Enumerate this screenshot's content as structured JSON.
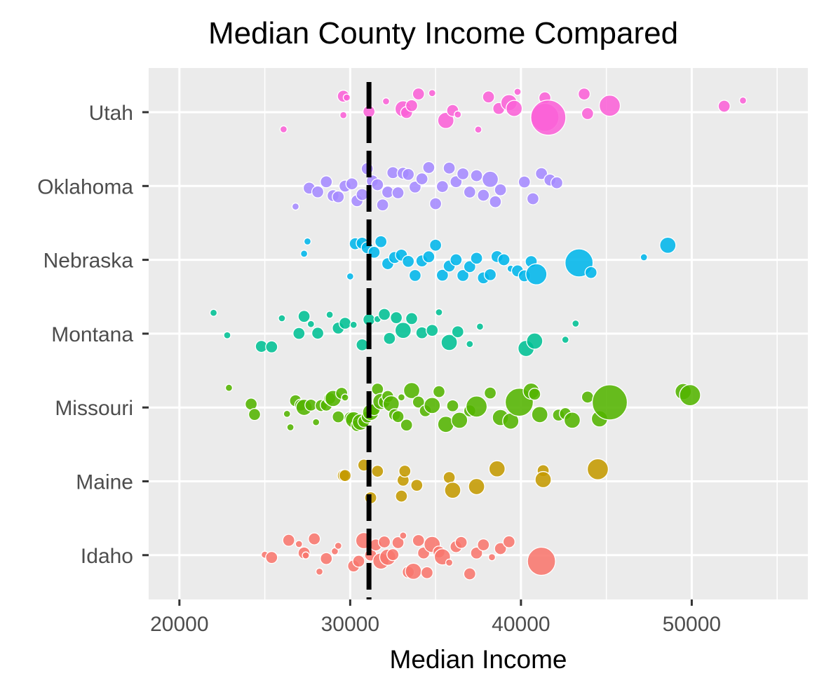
{
  "chart_data": {
    "type": "scatter",
    "title": "Median County Income Compared",
    "xlabel": "Median Income",
    "ylabel": "",
    "xlim": [
      18200,
      56800
    ],
    "x_ticks": [
      20000,
      30000,
      40000,
      50000
    ],
    "x_tick_labels": [
      "20000",
      "30000",
      "40000",
      "50000"
    ],
    "categories": [
      "Idaho",
      "Maine",
      "Missouri",
      "Montana",
      "Nebraska",
      "Oklahoma",
      "Utah"
    ],
    "reference_line": {
      "x": 31100,
      "style": "dashed",
      "color": "#000000"
    },
    "grid": true,
    "legend": "none",
    "panel_background": "#ebebeb",
    "series": [
      {
        "category": "Idaho",
        "color": "#f8766d",
        "points": [
          [
            25000,
            1
          ],
          [
            25400,
            2
          ],
          [
            26400,
            2
          ],
          [
            27000,
            1
          ],
          [
            27300,
            2
          ],
          [
            27400,
            1
          ],
          [
            27900,
            2
          ],
          [
            28200,
            1
          ],
          [
            28600,
            2
          ],
          [
            29100,
            1
          ],
          [
            29300,
            1
          ],
          [
            30200,
            2
          ],
          [
            30500,
            2
          ],
          [
            30800,
            3
          ],
          [
            31200,
            2
          ],
          [
            31500,
            2
          ],
          [
            31800,
            3
          ],
          [
            32000,
            2
          ],
          [
            32200,
            3
          ],
          [
            32500,
            2
          ],
          [
            32800,
            2
          ],
          [
            33100,
            1
          ],
          [
            33400,
            2
          ],
          [
            33700,
            3
          ],
          [
            34000,
            2
          ],
          [
            34300,
            2
          ],
          [
            34500,
            2
          ],
          [
            34800,
            3
          ],
          [
            35200,
            2
          ],
          [
            35400,
            3
          ],
          [
            35800,
            1
          ],
          [
            36200,
            2
          ],
          [
            36500,
            2
          ],
          [
            37000,
            2
          ],
          [
            37400,
            2
          ],
          [
            37800,
            2
          ],
          [
            38300,
            1
          ],
          [
            38800,
            2
          ],
          [
            39300,
            2
          ],
          [
            41200,
            5
          ]
        ]
      },
      {
        "category": "Maine",
        "color": "#c49a00",
        "points": [
          [
            29600,
            2
          ],
          [
            29700,
            2
          ],
          [
            30800,
            2
          ],
          [
            31200,
            2
          ],
          [
            31600,
            2
          ],
          [
            33000,
            2
          ],
          [
            33100,
            2
          ],
          [
            33200,
            2
          ],
          [
            33900,
            2
          ],
          [
            35800,
            2
          ],
          [
            36000,
            3
          ],
          [
            37400,
            3
          ],
          [
            38600,
            3
          ],
          [
            41300,
            2
          ],
          [
            41300,
            3
          ],
          [
            44500,
            4
          ]
        ]
      },
      {
        "category": "Missouri",
        "color": "#53b400",
        "points": [
          [
            22900,
            1
          ],
          [
            24200,
            2
          ],
          [
            24400,
            2
          ],
          [
            26300,
            1
          ],
          [
            26500,
            1
          ],
          [
            26800,
            2
          ],
          [
            27100,
            2
          ],
          [
            27300,
            3
          ],
          [
            27700,
            2
          ],
          [
            28000,
            1
          ],
          [
            28300,
            2
          ],
          [
            28600,
            2
          ],
          [
            28800,
            2
          ],
          [
            29000,
            3
          ],
          [
            29300,
            2
          ],
          [
            29500,
            2
          ],
          [
            29700,
            1
          ],
          [
            30000,
            2
          ],
          [
            30200,
            3
          ],
          [
            30400,
            2
          ],
          [
            30600,
            3
          ],
          [
            30800,
            2
          ],
          [
            31000,
            2
          ],
          [
            31200,
            3
          ],
          [
            31400,
            2
          ],
          [
            31600,
            2
          ],
          [
            31800,
            3
          ],
          [
            32000,
            2
          ],
          [
            32200,
            2
          ],
          [
            32400,
            3
          ],
          [
            32600,
            2
          ],
          [
            32800,
            2
          ],
          [
            33000,
            1
          ],
          [
            33300,
            2
          ],
          [
            33600,
            3
          ],
          [
            34000,
            2
          ],
          [
            34400,
            2
          ],
          [
            34800,
            3
          ],
          [
            35200,
            2
          ],
          [
            35600,
            3
          ],
          [
            36000,
            2
          ],
          [
            36400,
            3
          ],
          [
            37000,
            2
          ],
          [
            37400,
            4
          ],
          [
            38200,
            2
          ],
          [
            38800,
            3
          ],
          [
            39400,
            3
          ],
          [
            39900,
            5
          ],
          [
            40600,
            3
          ],
          [
            40800,
            2
          ],
          [
            41100,
            3
          ],
          [
            42200,
            2
          ],
          [
            42600,
            2
          ],
          [
            43000,
            3
          ],
          [
            43900,
            2
          ],
          [
            44600,
            3
          ],
          [
            45200,
            6
          ],
          [
            49500,
            3
          ],
          [
            49900,
            4
          ]
        ]
      },
      {
        "category": "Montana",
        "color": "#00c094",
        "points": [
          [
            22000,
            1
          ],
          [
            22800,
            1
          ],
          [
            24800,
            2
          ],
          [
            25400,
            2
          ],
          [
            26000,
            1
          ],
          [
            27000,
            2
          ],
          [
            27300,
            2
          ],
          [
            27700,
            1
          ],
          [
            28100,
            2
          ],
          [
            28800,
            1
          ],
          [
            29300,
            2
          ],
          [
            29700,
            2
          ],
          [
            30200,
            1
          ],
          [
            30700,
            2
          ],
          [
            31100,
            2
          ],
          [
            31600,
            1
          ],
          [
            32000,
            2
          ],
          [
            32300,
            2
          ],
          [
            32700,
            2
          ],
          [
            33100,
            3
          ],
          [
            33600,
            2
          ],
          [
            34200,
            2
          ],
          [
            34800,
            2
          ],
          [
            35200,
            1
          ],
          [
            35800,
            3
          ],
          [
            36300,
            2
          ],
          [
            37000,
            1
          ],
          [
            37600,
            1
          ],
          [
            40300,
            3
          ],
          [
            40800,
            3
          ],
          [
            42600,
            1
          ],
          [
            43200,
            1
          ]
        ]
      },
      {
        "category": "Nebraska",
        "color": "#00b6eb",
        "points": [
          [
            27300,
            1
          ],
          [
            27500,
            1
          ],
          [
            30000,
            1
          ],
          [
            30300,
            2
          ],
          [
            30700,
            2
          ],
          [
            31000,
            2
          ],
          [
            31400,
            2
          ],
          [
            31800,
            2
          ],
          [
            32200,
            2
          ],
          [
            32600,
            2
          ],
          [
            33000,
            2
          ],
          [
            33400,
            2
          ],
          [
            33800,
            2
          ],
          [
            34200,
            2
          ],
          [
            34600,
            2
          ],
          [
            35000,
            2
          ],
          [
            35400,
            2
          ],
          [
            35800,
            2
          ],
          [
            36200,
            2
          ],
          [
            36600,
            2
          ],
          [
            37000,
            2
          ],
          [
            37400,
            2
          ],
          [
            37800,
            2
          ],
          [
            38200,
            2
          ],
          [
            38600,
            2
          ],
          [
            39000,
            2
          ],
          [
            39400,
            1
          ],
          [
            39800,
            2
          ],
          [
            40200,
            2
          ],
          [
            40600,
            2
          ],
          [
            40900,
            4
          ],
          [
            43400,
            5
          ],
          [
            44100,
            2
          ],
          [
            47200,
            1
          ],
          [
            48600,
            3
          ]
        ]
      },
      {
        "category": "Oklahoma",
        "color": "#a58aff",
        "points": [
          [
            26800,
            1
          ],
          [
            27600,
            2
          ],
          [
            28100,
            2
          ],
          [
            28600,
            2
          ],
          [
            29000,
            2
          ],
          [
            29300,
            2
          ],
          [
            29700,
            2
          ],
          [
            30100,
            2
          ],
          [
            30400,
            2
          ],
          [
            30700,
            2
          ],
          [
            31000,
            2
          ],
          [
            31300,
            2
          ],
          [
            31600,
            2
          ],
          [
            31900,
            2
          ],
          [
            32200,
            2
          ],
          [
            32500,
            2
          ],
          [
            32800,
            2
          ],
          [
            33100,
            2
          ],
          [
            33400,
            2
          ],
          [
            33800,
            2
          ],
          [
            34200,
            2
          ],
          [
            34600,
            2
          ],
          [
            35000,
            2
          ],
          [
            35400,
            2
          ],
          [
            35800,
            2
          ],
          [
            36200,
            2
          ],
          [
            36600,
            2
          ],
          [
            37000,
            2
          ],
          [
            37400,
            2
          ],
          [
            37800,
            2
          ],
          [
            38200,
            3
          ],
          [
            38500,
            2
          ],
          [
            38800,
            2
          ],
          [
            40200,
            2
          ],
          [
            40700,
            2
          ],
          [
            41200,
            2
          ],
          [
            41700,
            2
          ],
          [
            42100,
            2
          ]
        ]
      },
      {
        "category": "Utah",
        "color": "#fb61d7",
        "points": [
          [
            26100,
            1
          ],
          [
            29600,
            1
          ],
          [
            29600,
            2
          ],
          [
            29800,
            1
          ],
          [
            31100,
            2
          ],
          [
            32100,
            1
          ],
          [
            33100,
            3
          ],
          [
            33300,
            2
          ],
          [
            33600,
            2
          ],
          [
            34000,
            2
          ],
          [
            34800,
            1
          ],
          [
            35600,
            3
          ],
          [
            36000,
            2
          ],
          [
            36300,
            1
          ],
          [
            37500,
            1
          ],
          [
            38100,
            2
          ],
          [
            38700,
            2
          ],
          [
            39300,
            3
          ],
          [
            39600,
            3
          ],
          [
            39800,
            1
          ],
          [
            41400,
            2
          ],
          [
            41400,
            5
          ],
          [
            41600,
            6
          ],
          [
            43700,
            2
          ],
          [
            43900,
            2
          ],
          [
            45200,
            4
          ],
          [
            51900,
            2
          ],
          [
            53000,
            1
          ]
        ]
      }
    ]
  }
}
